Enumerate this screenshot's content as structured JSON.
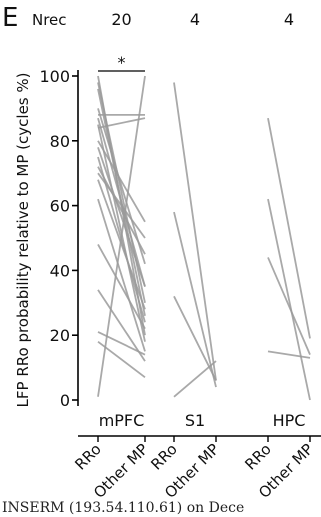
{
  "panel_label": "E",
  "nrec_label": "Nrec",
  "footer": "INSERM (193.54.110.61) on Dece",
  "chart_data": {
    "type": "line",
    "ylabel": "LFP RRo probability relative to MP (cycles %)",
    "ylim": [
      0,
      100
    ],
    "yticks": [
      "100",
      "80",
      "60",
      "40",
      "20",
      "0"
    ],
    "x_tick_labels": [
      "RRo",
      "Other MP"
    ],
    "significance": "*",
    "colors": {
      "line": "#9a9a9a",
      "axis": "#000000"
    },
    "groups": [
      {
        "name": "mPFC",
        "n": "20",
        "pairs": [
          [
            100,
            20
          ],
          [
            98,
            30
          ],
          [
            96,
            26
          ],
          [
            90,
            42
          ],
          [
            88,
            88
          ],
          [
            87,
            35
          ],
          [
            85,
            18
          ],
          [
            84,
            87
          ],
          [
            80,
            55
          ],
          [
            78,
            35
          ],
          [
            75,
            24
          ],
          [
            72,
            45
          ],
          [
            70,
            50
          ],
          [
            68,
            28
          ],
          [
            62,
            15
          ],
          [
            48,
            22
          ],
          [
            34,
            12
          ],
          [
            21,
            14
          ],
          [
            18,
            7
          ],
          [
            1,
            100
          ]
        ]
      },
      {
        "name": "S1",
        "n": "4",
        "pairs": [
          [
            98,
            6
          ],
          [
            58,
            4
          ],
          [
            32,
            6
          ],
          [
            1,
            12
          ]
        ]
      },
      {
        "name": "HPC",
        "n": "4",
        "pairs": [
          [
            87,
            19
          ],
          [
            62,
            0
          ],
          [
            44,
            14
          ],
          [
            15,
            13
          ]
        ]
      }
    ]
  }
}
